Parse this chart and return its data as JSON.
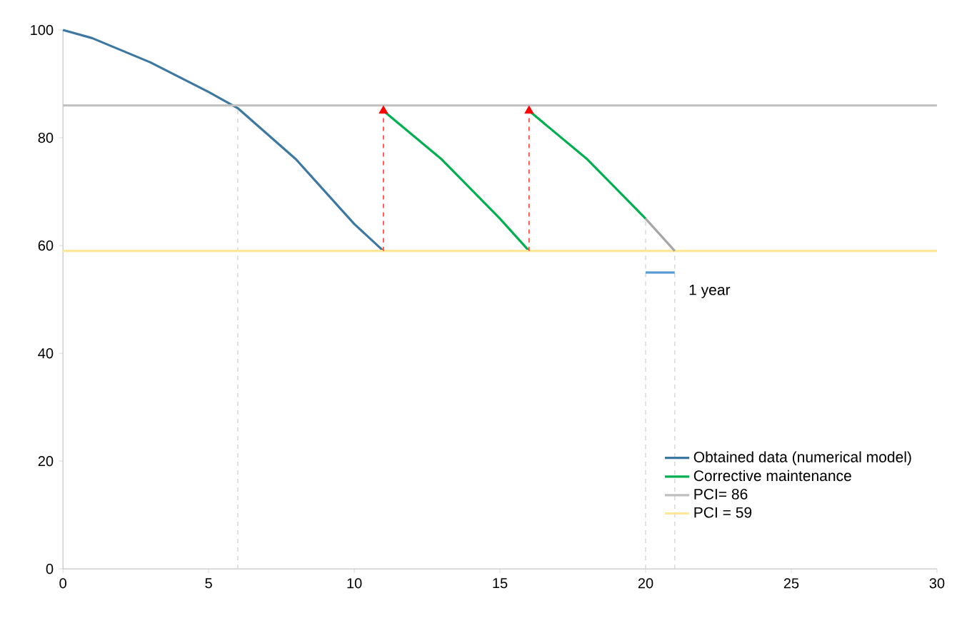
{
  "chart_data": {
    "type": "line",
    "xlim": [
      0,
      30
    ],
    "ylim": [
      0,
      100
    ],
    "xticks": [
      0,
      5,
      10,
      15,
      20,
      25,
      30
    ],
    "yticks": [
      0,
      20,
      40,
      60,
      80,
      100
    ],
    "grid": false,
    "legend": "bottom right",
    "marker": "none",
    "line_style": "solid",
    "annotations": [
      "1 year"
    ],
    "series": [
      {
        "name": "PCI= 86",
        "color": "#bfbfbf",
        "x": [
          0,
          30
        ],
        "values": [
          86,
          86
        ]
      },
      {
        "name": "PCI = 59",
        "color": "#ffe699",
        "x": [
          0,
          30
        ],
        "values": [
          59,
          59
        ]
      },
      {
        "color": "#d9d9d9",
        "line_style": "dashed",
        "x": [
          6,
          6
        ],
        "values": [
          0,
          85.5
        ]
      },
      {
        "color": "#d9d9d9",
        "line_style": "dashed",
        "x": [
          20,
          20
        ],
        "values": [
          0,
          65
        ]
      },
      {
        "color": "#d9d9d9",
        "line_style": "dashed",
        "x": [
          21,
          21
        ],
        "values": [
          0,
          59
        ]
      },
      {
        "name": "Obtained data (numerical model)",
        "color": "#3c78a0",
        "x": [
          0,
          1,
          3,
          5,
          6,
          8,
          10,
          11
        ],
        "values": [
          100,
          98.5,
          94,
          88.5,
          85.5,
          76,
          64,
          59
        ]
      },
      {
        "name": "Corrective maintenance",
        "color": "#00b050",
        "x": [
          11,
          13,
          15,
          16
        ],
        "values": [
          85,
          76,
          65,
          59
        ]
      },
      {
        "color": "#00b050",
        "x": [
          16,
          18,
          20
        ],
        "values": [
          85,
          76,
          65
        ]
      },
      {
        "color": "#a6a6a6",
        "x": [
          20,
          21
        ],
        "values": [
          65,
          59
        ]
      },
      {
        "color": "#ff4040",
        "line_style": "dashed",
        "x": [
          11,
          11
        ],
        "values": [
          59,
          84
        ]
      },
      {
        "color": "#ff4040",
        "line_style": "dashed",
        "x": [
          16,
          16
        ],
        "values": [
          59,
          84
        ]
      },
      {
        "type": "scatter",
        "color": "#ff0000",
        "marker": "triangle",
        "x": [
          11,
          16
        ],
        "values": [
          85,
          85
        ]
      },
      {
        "color": "#5b9bd5",
        "x": [
          20,
          21
        ],
        "values": [
          55,
          55
        ]
      }
    ]
  }
}
